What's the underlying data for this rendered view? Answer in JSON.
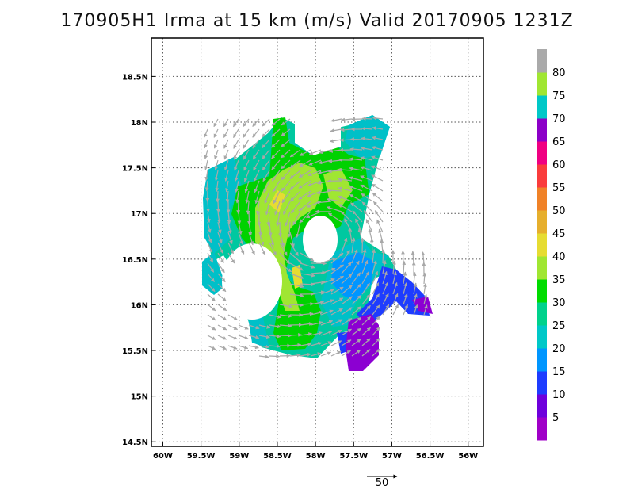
{
  "title": "170905H1 Irma at 15 km (m/s) Valid 20170905 1231Z",
  "map": {
    "lon_ticks": [
      {
        "value": -60.0,
        "label": "60W"
      },
      {
        "value": -59.5,
        "label": "59.5W"
      },
      {
        "value": -59.0,
        "label": "59W"
      },
      {
        "value": -58.5,
        "label": "58.5W"
      },
      {
        "value": -58.0,
        "label": "58W"
      },
      {
        "value": -57.5,
        "label": "57.5W"
      },
      {
        "value": -57.0,
        "label": "57W"
      },
      {
        "value": -56.5,
        "label": "56.5W"
      },
      {
        "value": -56.0,
        "label": "56W"
      }
    ],
    "lat_ticks": [
      {
        "value": 18.5,
        "label": "18.5N"
      },
      {
        "value": 18.0,
        "label": "18N"
      },
      {
        "value": 17.5,
        "label": "17.5N"
      },
      {
        "value": 17.0,
        "label": "17N"
      },
      {
        "value": 16.5,
        "label": "16.5N"
      },
      {
        "value": 16.0,
        "label": "16N"
      },
      {
        "value": 15.5,
        "label": "15.5N"
      },
      {
        "value": 15.0,
        "label": "15N"
      },
      {
        "value": 14.5,
        "label": "14.5N"
      }
    ],
    "lon_range": [
      -60.15,
      -55.8
    ],
    "lat_range": [
      14.45,
      18.92
    ],
    "grid": "dotted",
    "center": {
      "lon": -57.92,
      "lat": 16.75
    },
    "vector_reference": {
      "label": "50"
    }
  },
  "colorbar": {
    "labels": [
      "5",
      "10",
      "15",
      "20",
      "25",
      "30",
      "35",
      "40",
      "45",
      "50",
      "55",
      "60",
      "65",
      "70",
      "75",
      "80"
    ],
    "colors": [
      "#a000c8",
      "#6e00dc",
      "#1e3cff",
      "#0096ff",
      "#00c8c8",
      "#00d28c",
      "#00dc00",
      "#a0e632",
      "#e6dc32",
      "#e6af2d",
      "#f08228",
      "#fa3c3c",
      "#f00082",
      "#8c00c8",
      "#00c8c8",
      "#a0e632",
      "#aaaaaa"
    ]
  },
  "colors": {
    "vector": "#a8a8a8",
    "axes": "#000000"
  }
}
